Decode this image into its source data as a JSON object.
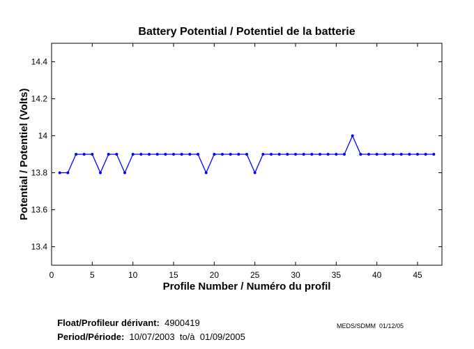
{
  "chart_data": {
    "type": "line",
    "title": "Battery Potential / Potentiel de la batterie",
    "xlabel": "Profile Number / Numéro du profil",
    "ylabel": "Potential / Potentiel (Volts)",
    "xlim": [
      0,
      48
    ],
    "ylim": [
      13.3,
      14.5
    ],
    "xticks": [
      0,
      5,
      10,
      15,
      20,
      25,
      30,
      35,
      40,
      45
    ],
    "yticks": [
      13.4,
      13.6,
      13.8,
      14,
      14.2,
      14.4
    ],
    "xtick_labels": [
      "0",
      "5",
      "10",
      "15",
      "20",
      "25",
      "30",
      "35",
      "40",
      "45"
    ],
    "ytick_labels": [
      "13.4",
      "13.6",
      "13.8",
      "14",
      "14.2",
      "14.4"
    ],
    "grid": false,
    "color": "#0000ff",
    "x": [
      1,
      2,
      3,
      4,
      5,
      6,
      7,
      8,
      9,
      10,
      11,
      12,
      13,
      14,
      15,
      16,
      17,
      18,
      19,
      20,
      21,
      22,
      23,
      24,
      25,
      26,
      27,
      28,
      29,
      30,
      31,
      32,
      33,
      34,
      35,
      36,
      37,
      38,
      39,
      40,
      41,
      42,
      43,
      44,
      45,
      46,
      47
    ],
    "y": [
      13.8,
      13.8,
      13.9,
      13.9,
      13.9,
      13.8,
      13.9,
      13.9,
      13.8,
      13.9,
      13.9,
      13.9,
      13.9,
      13.9,
      13.9,
      13.9,
      13.9,
      13.9,
      13.8,
      13.9,
      13.9,
      13.9,
      13.9,
      13.9,
      13.8,
      13.9,
      13.9,
      13.9,
      13.9,
      13.9,
      13.9,
      13.9,
      13.9,
      13.9,
      13.9,
      13.9,
      14.0,
      13.9,
      13.9,
      13.9,
      13.9,
      13.9,
      13.9,
      13.9,
      13.9,
      13.9,
      13.9
    ]
  },
  "footer": {
    "float_label": "Float/Profileur dérivant:",
    "float_value": "4900419",
    "period_label": "Period/Période:",
    "period_value": "10/07/2003  to/à  01/09/2005",
    "stamp": "MEDS/SDMM  01/12/05"
  }
}
